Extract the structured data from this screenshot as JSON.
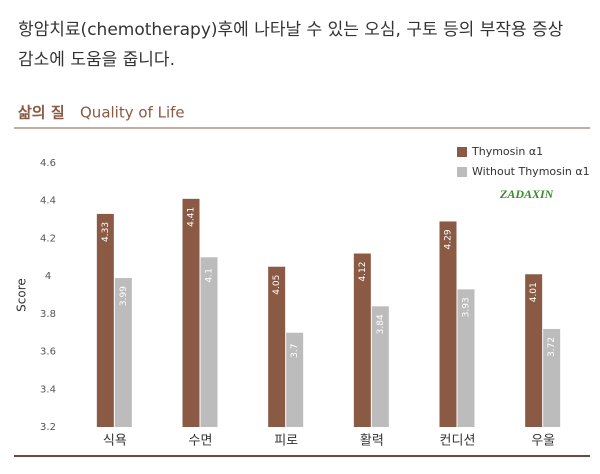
{
  "header": {
    "lines": [
      "항암치료(chemotherapy)후에 나타날 수 있는 오심, 구토 등의 부작용 증상",
      "감소에 도움을 줍니다."
    ]
  },
  "section_title": {
    "korean": "삶의 질",
    "english": "Quality of Life"
  },
  "chart_data": {
    "type": "bar",
    "ylabel": "Score",
    "categories": [
      "식욕",
      "수면",
      "피로",
      "활력",
      "컨디션",
      "우울"
    ],
    "series": [
      {
        "name": "Thymosin α1",
        "color": "#8b5a45",
        "values": [
          4.33,
          4.41,
          4.05,
          4.12,
          4.29,
          4.01
        ]
      },
      {
        "name": "Without Thymosin α1",
        "color": "#bcbcbc",
        "values": [
          3.99,
          4.1,
          3.7,
          3.84,
          3.93,
          3.72
        ]
      }
    ],
    "ylim": [
      3.2,
      4.6
    ],
    "yticks": [
      3.2,
      3.4,
      3.6,
      3.8,
      4,
      4.2,
      4.4,
      4.6
    ],
    "legend": "top-right",
    "logo": "ZADAXIN"
  }
}
